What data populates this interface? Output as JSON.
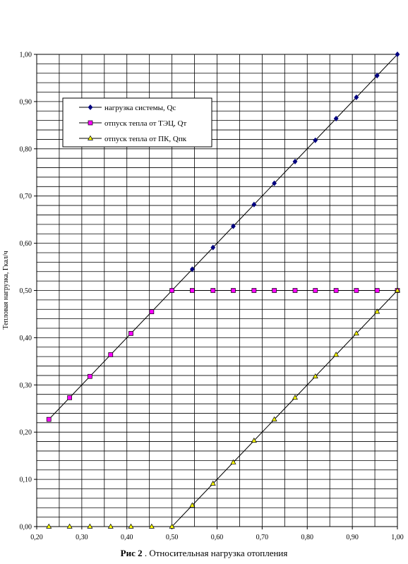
{
  "chart_data": {
    "type": "line",
    "title": "",
    "xlabel": "",
    "ylabel": "Тепловая нагрузка, Гкал/ч",
    "xlim": [
      0.2,
      1.0
    ],
    "ylim": [
      0.0,
      1.0
    ],
    "x_ticks": [
      "0,20",
      "0,30",
      "0,40",
      "0,50",
      "0,60",
      "0,70",
      "0,80",
      "0,90",
      "1,00"
    ],
    "y_ticks": [
      "0,00",
      "0,10",
      "0,20",
      "0,30",
      "0,40",
      "0,50",
      "0,60",
      "0,70",
      "0,80",
      "0,90",
      "1,00"
    ],
    "grid": true,
    "legend_position": "top-left",
    "x": [
      0.227,
      0.273,
      0.318,
      0.364,
      0.409,
      0.455,
      0.5,
      0.545,
      0.591,
      0.636,
      0.682,
      0.727,
      0.773,
      0.818,
      0.864,
      0.909,
      0.955,
      1.0
    ],
    "series": [
      {
        "name": "нагрузка системы, Qс",
        "marker": "diamond",
        "color": "#000080",
        "values": [
          null,
          null,
          null,
          null,
          null,
          null,
          0.5,
          0.545,
          0.591,
          0.636,
          0.682,
          0.727,
          0.773,
          0.818,
          0.864,
          0.909,
          0.955,
          1.0
        ]
      },
      {
        "name": "отпуск тепла от ТЭЦ, Qт",
        "marker": "square",
        "color": "#ff00ff",
        "values": [
          0.227,
          0.273,
          0.318,
          0.364,
          0.409,
          0.455,
          0.5,
          0.5,
          0.5,
          0.5,
          0.5,
          0.5,
          0.5,
          0.5,
          0.5,
          0.5,
          0.5,
          0.5
        ]
      },
      {
        "name": "отпуск тепла от ПК, Qпк",
        "marker": "triangle",
        "color": "#ffff00",
        "values": [
          0,
          0,
          0,
          0,
          0,
          0,
          0,
          0.045,
          0.091,
          0.136,
          0.182,
          0.227,
          0.273,
          0.318,
          0.364,
          0.409,
          0.455,
          0.5
        ]
      }
    ]
  },
  "caption": {
    "prefix": "Рис 2",
    "text": ". Относительная нагрузка отопления"
  }
}
